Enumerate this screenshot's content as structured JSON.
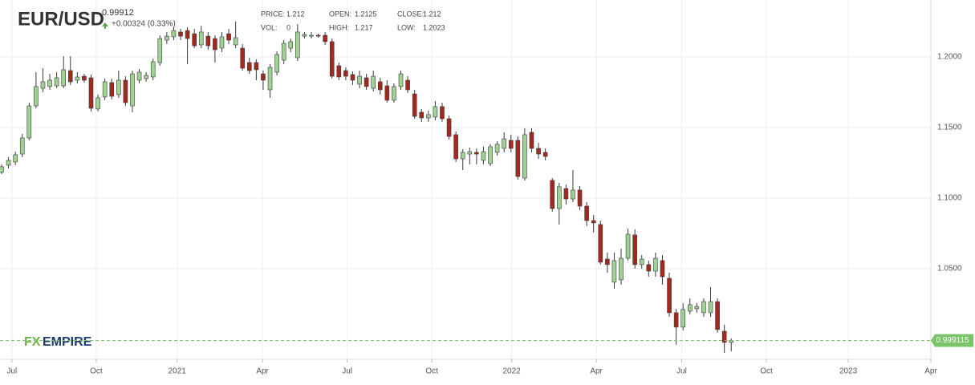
{
  "header": {
    "symbol": "EUR/USD",
    "price": "0.99912",
    "change": "+0.00324 (0.33%)",
    "stats": [
      [
        "PRICE:",
        "1.212"
      ],
      [
        "OPEN:",
        "1.2125"
      ],
      [
        "CLOSE:",
        "1.212"
      ],
      [
        "VOL:",
        "0"
      ],
      [
        "HIGH:",
        "1.217"
      ],
      [
        "LOW:",
        "1.2023"
      ]
    ]
  },
  "logo": {
    "fx": "FX",
    "empire": "EMPIRE"
  },
  "chart_data": {
    "type": "candlestick",
    "open": [
      1.1182,
      1.1233,
      1.1256,
      1.1312,
      1.1426,
      1.1653,
      1.1778,
      1.179,
      1.1795,
      1.1795,
      1.1903,
      1.1835,
      1.1863,
      1.1852,
      1.1631,
      1.1716,
      1.1818,
      1.1733,
      1.1835,
      1.1653,
      1.1835,
      1.1846,
      1.1858,
      1.196,
      1.2119,
      1.2142,
      1.2176,
      1.2187,
      1.2164,
      1.2085,
      1.2147,
      1.213,
      1.2062,
      1.2164,
      1.2085,
      1.2062,
      1.196,
      1.196,
      1.188,
      1.1767,
      1.1892,
      1.1977,
      1.2062,
      1.1994,
      1.2147,
      1.2147,
      1.2153,
      1.2153,
      1.2108,
      1.1937,
      1.1903,
      1.1875,
      1.1807,
      1.1852,
      1.1778,
      1.1824,
      1.1795,
      1.1693,
      1.179,
      1.1835,
      1.1738,
      1.1608,
      1.1568,
      1.1574,
      1.1648,
      1.1562,
      1.1449,
      1.1278,
      1.1312,
      1.1324,
      1.1267,
      1.1244,
      1.1324,
      1.1352,
      1.1409,
      1.1409,
      1.1142,
      1.1466,
      1.1352,
      1.1324,
      1.1125,
      1.0926,
      1.1068,
      1.0994,
      1.1057,
      1.0943,
      1.0841,
      1.0813,
      1.0568,
      1.0404,
      1.0421,
      1.0574,
      1.0739,
      1.0529,
      1.0529,
      1.0483,
      1.0557,
      1.0432,
      1.0188,
      1.0086,
      1.0199,
      1.0216,
      1.0188,
      1.0188,
      1.0267,
      1.0057,
      0.9978
    ],
    "high": [
      1.1239,
      1.129,
      1.133,
      1.1454,
      1.1676,
      1.1892,
      1.192,
      1.188,
      1.1892,
      1.2005,
      1.2005,
      1.1892,
      1.188,
      1.1875,
      1.1733,
      1.1846,
      1.1846,
      1.1903,
      1.1863,
      1.1903,
      1.1915,
      1.1892,
      1.1988,
      1.2153,
      1.2176,
      1.221,
      1.2199,
      1.221,
      1.2199,
      1.2221,
      1.2176,
      1.2153,
      1.2176,
      1.2199,
      1.225,
      1.2091,
      1.1994,
      1.1983,
      1.1903,
      1.1949,
      1.204,
      1.2119,
      1.213,
      1.2233,
      1.2176,
      1.2176,
      1.2164,
      1.2176,
      1.213,
      1.196,
      1.1926,
      1.1897,
      1.1903,
      1.188,
      1.1903,
      1.1852,
      1.1835,
      1.1812,
      1.1903,
      1.1863,
      1.1767,
      1.1631,
      1.1619,
      1.1687,
      1.1676,
      1.1585,
      1.1472,
      1.1347,
      1.1358,
      1.1352,
      1.1364,
      1.1381,
      1.1403,
      1.1466,
      1.1449,
      1.1437,
      1.1494,
      1.1494,
      1.1392,
      1.1352,
      1.1142,
      1.1108,
      1.1097,
      1.1199,
      1.1085,
      1.0972,
      1.0881,
      1.0841,
      1.0614,
      1.0614,
      1.0642,
      1.0784,
      1.0779,
      1.0597,
      1.0557,
      1.0614,
      1.0597,
      1.0472,
      1.0216,
      1.0256,
      1.029,
      1.0256,
      1.029,
      1.037,
      1.029,
      1.0103,
      1.0006
    ],
    "low": [
      1.1171,
      1.121,
      1.1233,
      1.129,
      1.1409,
      1.1636,
      1.175,
      1.1767,
      1.1778,
      1.1778,
      1.1801,
      1.1812,
      1.1818,
      1.1613,
      1.1613,
      1.1693,
      1.1699,
      1.171,
      1.1653,
      1.1608,
      1.1812,
      1.1824,
      1.1835,
      1.1937,
      1.2091,
      1.2119,
      1.2119,
      1.1949,
      1.2062,
      1.2062,
      1.2051,
      1.196,
      1.2034,
      1.2091,
      1.2062,
      1.1903,
      1.188,
      1.1835,
      1.1767,
      1.171,
      1.1869,
      1.1949,
      1.2034,
      1.1971,
      1.213,
      1.213,
      1.2136,
      1.2085,
      1.1846,
      1.1835,
      1.1835,
      1.1801,
      1.1778,
      1.1767,
      1.1755,
      1.1733,
      1.1676,
      1.1676,
      1.1767,
      1.1744,
      1.1562,
      1.154,
      1.154,
      1.1551,
      1.154,
      1.1415,
      1.1256,
      1.1199,
      1.1239,
      1.1239,
      1.1239,
      1.1227,
      1.1301,
      1.1324,
      1.1324,
      1.1131,
      1.1125,
      1.1324,
      1.1278,
      1.1267,
      1.0904,
      1.0813,
      1.0955,
      1.0972,
      1.0915,
      1.0801,
      1.0756,
      1.0529,
      1.0472,
      1.0358,
      1.0387,
      1.0557,
      1.05,
      1.05,
      1.0443,
      1.0443,
      1.0387,
      1.0159,
      0.9961,
      1.0063,
      1.0176,
      1.0188,
      1.0159,
      1.0159,
      1.0046,
      0.9904,
      0.9915
    ],
    "close": [
      1.1222,
      1.1267,
      1.1307,
      1.1426,
      1.1653,
      1.179,
      1.1824,
      1.1835,
      1.1852,
      1.1909,
      1.1824,
      1.1858,
      1.1835,
      1.1636,
      1.171,
      1.1824,
      1.1721,
      1.1835,
      1.1676,
      1.188,
      1.1892,
      1.1869,
      1.1966,
      1.213,
      1.2147,
      1.2187,
      1.2147,
      1.213,
      1.2079,
      1.2176,
      1.2079,
      1.2051,
      1.2142,
      1.2119,
      1.2136,
      1.192,
      1.1903,
      1.1909,
      1.1835,
      1.1926,
      1.2017,
      1.2096,
      1.2108,
      1.2176,
      1.2159,
      1.2153,
      1.2147,
      1.2108,
      1.1863,
      1.1858,
      1.1863,
      1.1835,
      1.1863,
      1.179,
      1.1863,
      1.1767,
      1.1693,
      1.179,
      1.188,
      1.1767,
      1.1579,
      1.1568,
      1.1591,
      1.1648,
      1.1562,
      1.1437,
      1.1278,
      1.1324,
      1.1329,
      1.1312,
      1.1329,
      1.1364,
      1.1381,
      1.142,
      1.1352,
      1.1153,
      1.1449,
      1.1352,
      1.1312,
      1.1295,
      1.0926,
      1.108,
      1.0994,
      1.1057,
      1.0943,
      1.0841,
      1.0824,
      1.0546,
      1.0529,
      1.0557,
      1.0574,
      1.0744,
      1.0529,
      1.0568,
      1.0483,
      1.0574,
      1.0443,
      1.0188,
      1.0086,
      1.0211,
      1.0245,
      1.0233,
      1.0267,
      1.0267,
      1.0069,
      0.9978,
      0.9991
    ],
    "up_color": "#9fd293",
    "down_color": "#a3291f",
    "outline_color": "#3a3a3a",
    "xlim": [
      -0.233,
      135
    ],
    "ylim": [
      0.9858,
      1.2403
    ],
    "xticks": [
      {
        "value": 1.5,
        "label": "Jul"
      },
      {
        "value": 13.75,
        "label": "Oct"
      },
      {
        "value": 25.5,
        "label": "2021"
      },
      {
        "value": 37.9,
        "label": "Apr"
      },
      {
        "value": 50.2,
        "label": "Jul"
      },
      {
        "value": 62.5,
        "label": "Oct"
      },
      {
        "value": 74.1,
        "label": "2022"
      },
      {
        "value": 86.4,
        "label": "Apr"
      },
      {
        "value": 98.8,
        "label": "Jul"
      },
      {
        "value": 111.1,
        "label": "Oct"
      },
      {
        "value": 123,
        "label": "2023"
      },
      {
        "value": 135,
        "label": "Apr"
      }
    ],
    "yticks": [
      {
        "value": 1.05,
        "label": "1.0500"
      },
      {
        "value": 1.1,
        "label": "1.1000"
      },
      {
        "value": 1.15,
        "label": "1.1500"
      },
      {
        "value": 1.2,
        "label": "1.2000"
      }
    ],
    "grid": true,
    "current_price": 0.999115,
    "current_color": "#7cc46a"
  }
}
